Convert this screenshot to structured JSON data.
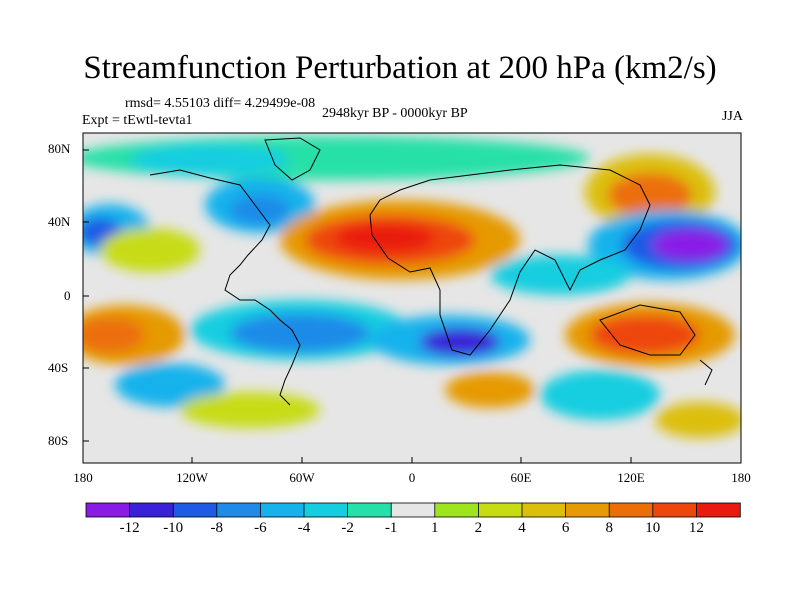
{
  "title": "Streamfunction Perturbation at 200 hPa (km2/s)",
  "stats": "rmsd= 4.55103 diff= 4.29499e-08",
  "experiment": "Expt = tEwtl-tevta1",
  "period": "2948kyr BP - 0000kyr BP",
  "season": "JJA",
  "lat_labels": [
    "80N",
    "40N",
    "0",
    "40S",
    "80S"
  ],
  "lon_labels": [
    "180",
    "120W",
    "60W",
    "0",
    "60E",
    "120E",
    "180"
  ],
  "colorbar": {
    "labels": [
      "-12",
      "-10",
      "-8",
      "-6",
      "-4",
      "-2",
      "-1",
      "1",
      "2",
      "4",
      "6",
      "8",
      "10",
      "12"
    ],
    "colors": [
      "#8a1be6",
      "#3a20d8",
      "#1e5ae6",
      "#1f8be8",
      "#15b2ec",
      "#14cee0",
      "#25e0a8",
      "#e6e6e6",
      "#9fe51c",
      "#c7dc12",
      "#dcbf0a",
      "#e69a06",
      "#ec6e07",
      "#ee470c",
      "#ea1a10"
    ]
  }
}
